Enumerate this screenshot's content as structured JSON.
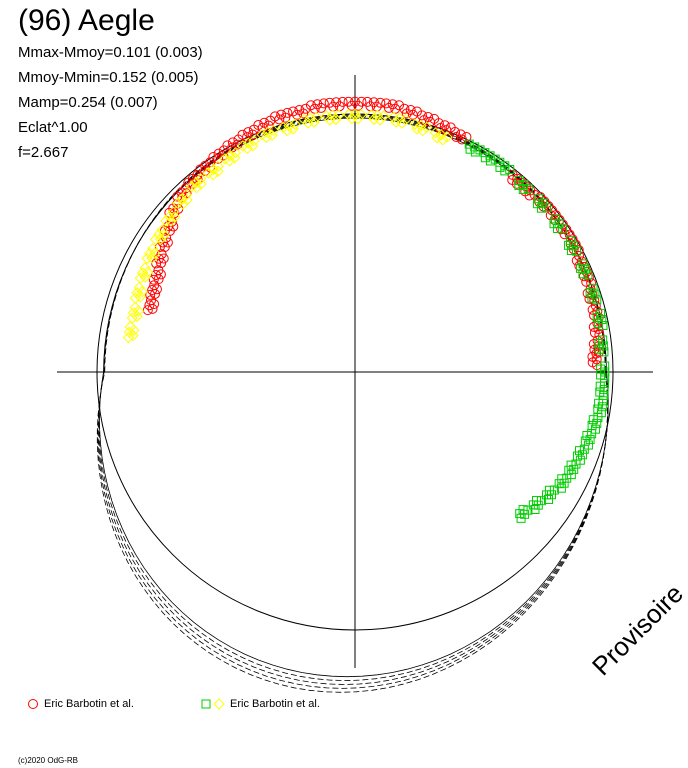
{
  "header": {
    "title": "(96) Aegle",
    "stats": [
      "Mmax-Mmoy=0.101 (0.003)",
      "Mmoy-Mmin=0.152 (0.005)",
      "Mamp=0.254 (0.007)",
      "Eclat^1.00",
      "f=2.667"
    ]
  },
  "watermark": "Provisoire",
  "legend": [
    {
      "label": "Eric Barbotin et al.",
      "markers": [
        "circle"
      ],
      "colors": [
        "#ff0000"
      ]
    },
    {
      "label": "Eric Barbotin et al.",
      "markers": [
        "square",
        "diamond"
      ],
      "colors": [
        "#00cc00",
        "#ffff00"
      ]
    }
  ],
  "copyright": "(c)2020 OdG-RB",
  "chart_data": {
    "type": "scatter",
    "projection": "polar",
    "title": "(96) Aegle",
    "colors": {
      "red": "#ff0000",
      "green": "#00cc00",
      "yellow": "#ffff00",
      "model": "#000000",
      "reference": "#000000"
    },
    "reference_circle_radius": 1.0,
    "series": [
      {
        "name": "Eric Barbotin et al.",
        "marker": "circle",
        "color": "#ff0000",
        "points": [
          {
            "angle_deg": 162,
            "r": 0.83
          },
          {
            "angle_deg": 158,
            "r": 0.84
          },
          {
            "angle_deg": 154,
            "r": 0.85
          },
          {
            "angle_deg": 150,
            "r": 0.87
          },
          {
            "angle_deg": 146,
            "r": 0.89
          },
          {
            "angle_deg": 142,
            "r": 0.91
          },
          {
            "angle_deg": 138,
            "r": 0.94
          },
          {
            "angle_deg": 134,
            "r": 0.96
          },
          {
            "angle_deg": 130,
            "r": 0.97
          },
          {
            "angle_deg": 126,
            "r": 0.98
          },
          {
            "angle_deg": 122,
            "r": 0.99
          },
          {
            "angle_deg": 118,
            "r": 1.0
          },
          {
            "angle_deg": 114,
            "r": 1.01
          },
          {
            "angle_deg": 110,
            "r": 1.02
          },
          {
            "angle_deg": 106,
            "r": 1.03
          },
          {
            "angle_deg": 102,
            "r": 1.03
          },
          {
            "angle_deg": 98,
            "r": 1.04
          },
          {
            "angle_deg": 94,
            "r": 1.04
          },
          {
            "angle_deg": 90,
            "r": 1.04
          },
          {
            "angle_deg": 86,
            "r": 1.04
          },
          {
            "angle_deg": 82,
            "r": 1.04
          },
          {
            "angle_deg": 78,
            "r": 1.03
          },
          {
            "angle_deg": 74,
            "r": 1.02
          },
          {
            "angle_deg": 70,
            "r": 1.01
          },
          {
            "angle_deg": 66,
            "r": 1.0
          },
          {
            "angle_deg": 50,
            "r": 0.97
          },
          {
            "angle_deg": 46,
            "r": 0.97
          },
          {
            "angle_deg": 42,
            "r": 0.98
          },
          {
            "angle_deg": 38,
            "r": 0.98
          },
          {
            "angle_deg": 34,
            "r": 0.98
          },
          {
            "angle_deg": 30,
            "r": 0.98
          },
          {
            "angle_deg": 26,
            "r": 0.97
          },
          {
            "angle_deg": 22,
            "r": 0.97
          },
          {
            "angle_deg": 18,
            "r": 0.96
          },
          {
            "angle_deg": 14,
            "r": 0.96
          },
          {
            "angle_deg": 10,
            "r": 0.95
          },
          {
            "angle_deg": 6,
            "r": 0.94
          },
          {
            "angle_deg": 3,
            "r": 0.93
          }
        ]
      },
      {
        "name": "Eric Barbotin et al.",
        "marker": "square",
        "color": "#00cc00",
        "points": [
          {
            "angle_deg": 62,
            "r": 0.98
          },
          {
            "angle_deg": 58,
            "r": 0.98
          },
          {
            "angle_deg": 54,
            "r": 0.98
          },
          {
            "angle_deg": 48,
            "r": 0.97
          },
          {
            "angle_deg": 42,
            "r": 0.97
          },
          {
            "angle_deg": 36,
            "r": 0.97
          },
          {
            "angle_deg": 30,
            "r": 0.97
          },
          {
            "angle_deg": 24,
            "r": 0.97
          },
          {
            "angle_deg": 18,
            "r": 0.97
          },
          {
            "angle_deg": 12,
            "r": 0.97
          },
          {
            "angle_deg": 6,
            "r": 0.96
          },
          {
            "angle_deg": 0,
            "r": 0.96
          },
          {
            "angle_deg": -4,
            "r": 0.96
          },
          {
            "angle_deg": -8,
            "r": 0.96
          },
          {
            "angle_deg": -12,
            "r": 0.95
          },
          {
            "angle_deg": -16,
            "r": 0.94
          },
          {
            "angle_deg": -20,
            "r": 0.93
          },
          {
            "angle_deg": -24,
            "r": 0.92
          },
          {
            "angle_deg": -28,
            "r": 0.91
          },
          {
            "angle_deg": -32,
            "r": 0.89
          },
          {
            "angle_deg": -36,
            "r": 0.87
          },
          {
            "angle_deg": -40,
            "r": 0.85
          }
        ]
      },
      {
        "name": "Eric Barbotin et al.",
        "marker": "diamond",
        "color": "#ffff00",
        "points": [
          {
            "angle_deg": 170,
            "r": 0.88
          },
          {
            "angle_deg": 165,
            "r": 0.88
          },
          {
            "angle_deg": 160,
            "r": 0.89
          },
          {
            "angle_deg": 155,
            "r": 0.9
          },
          {
            "angle_deg": 150,
            "r": 0.91
          },
          {
            "angle_deg": 145,
            "r": 0.92
          },
          {
            "angle_deg": 140,
            "r": 0.93
          },
          {
            "angle_deg": 135,
            "r": 0.94
          },
          {
            "angle_deg": 130,
            "r": 0.95
          },
          {
            "angle_deg": 125,
            "r": 0.95
          },
          {
            "angle_deg": 120,
            "r": 0.96
          },
          {
            "angle_deg": 115,
            "r": 0.97
          },
          {
            "angle_deg": 110,
            "r": 0.98
          },
          {
            "angle_deg": 105,
            "r": 0.98
          },
          {
            "angle_deg": 100,
            "r": 0.99
          },
          {
            "angle_deg": 95,
            "r": 0.99
          },
          {
            "angle_deg": 90,
            "r": 0.99
          },
          {
            "angle_deg": 85,
            "r": 0.99
          },
          {
            "angle_deg": 80,
            "r": 0.99
          },
          {
            "angle_deg": 75,
            "r": 0.98
          },
          {
            "angle_deg": 70,
            "r": 0.97
          }
        ]
      }
    ]
  }
}
